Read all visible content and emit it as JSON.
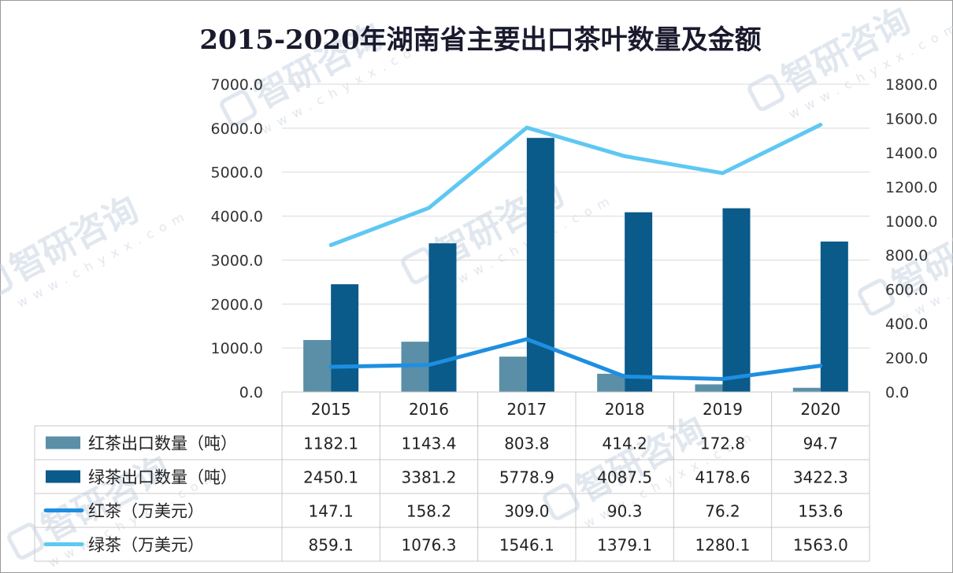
{
  "chart_data": {
    "type": "bar",
    "title": "2015-2020年湖南省主要出口茶叶数量及金额",
    "categories": [
      "2015",
      "2016",
      "2017",
      "2018",
      "2019",
      "2020"
    ],
    "y_left": {
      "ylim": [
        0,
        7000
      ],
      "ticks": [
        "0.0",
        "1000.0",
        "2000.0",
        "3000.0",
        "4000.0",
        "5000.0",
        "6000.0",
        "7000.0"
      ]
    },
    "y_right": {
      "ylim": [
        0,
        1800
      ],
      "ticks": [
        "0.0",
        "200.0",
        "400.0",
        "600.0",
        "800.0",
        "1000.0",
        "1200.0",
        "1400.0",
        "1600.0",
        "1800.0"
      ]
    },
    "grid": true,
    "legend": "data-table",
    "series": [
      {
        "name": "红茶出口数量（吨）",
        "type": "bar",
        "axis": "left",
        "color": "#5b8fa8",
        "values": [
          1182.1,
          1143.4,
          803.8,
          414.2,
          172.8,
          94.7
        ],
        "labels": [
          "1182.1",
          "1143.4",
          "803.8",
          "414.2",
          "172.8",
          "94.7"
        ]
      },
      {
        "name": "绿茶出口数量（吨）",
        "type": "bar",
        "axis": "left",
        "color": "#0a5a8a",
        "values": [
          2450.1,
          3381.2,
          5778.9,
          4087.5,
          4178.6,
          3422.3
        ],
        "labels": [
          "2450.1",
          "3381.2",
          "5778.9",
          "4087.5",
          "4178.6",
          "3422.3"
        ]
      },
      {
        "name": "红茶（万美元）",
        "type": "line",
        "axis": "right",
        "color": "#1e8fe0",
        "values": [
          147.1,
          158.2,
          309.0,
          90.3,
          76.2,
          153.6
        ],
        "labels": [
          "147.1",
          "158.2",
          "309.0",
          "90.3",
          "76.2",
          "153.6"
        ]
      },
      {
        "name": "绿茶（万美元）",
        "type": "line",
        "axis": "right",
        "color": "#5ec8f2",
        "values": [
          859.1,
          1076.3,
          1546.1,
          1379.1,
          1280.1,
          1563.0
        ],
        "labels": [
          "859.1",
          "1076.3",
          "1546.1",
          "1379.1",
          "1280.1",
          "1563.0"
        ]
      }
    ]
  },
  "watermark": {
    "text": "智研咨询",
    "url": "www.chyxx.com",
    "color": "#c8d3e0"
  }
}
